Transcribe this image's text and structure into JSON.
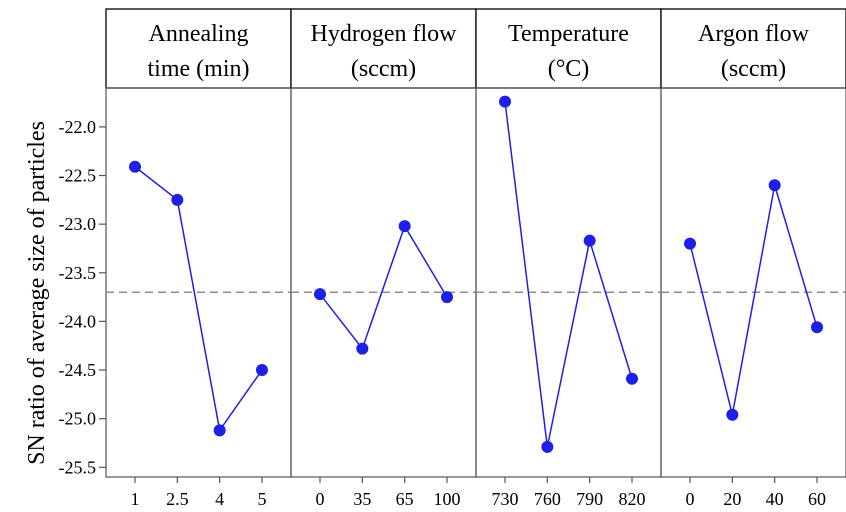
{
  "chart_data": {
    "type": "line",
    "ylabel": "SN ratio of average size of particles",
    "ylim": [
      -25.6,
      -21.6
    ],
    "yticks": [
      "-22.0",
      "-22.5",
      "-23.0",
      "-23.5",
      "-24.0",
      "-24.5",
      "-25.0",
      "-25.5"
    ],
    "reference_line": -23.7,
    "colors": {
      "series": "#1f1fe6",
      "reference": "#8c8c8c",
      "axis": "#555555"
    },
    "panels": [
      {
        "title_lines": [
          "Annealing",
          "time (min)"
        ],
        "categories": [
          "1",
          "2.5",
          "4",
          "5"
        ],
        "values": [
          -22.41,
          -22.75,
          -25.12,
          -24.5
        ]
      },
      {
        "title_lines": [
          "Hydrogen flow",
          "(sccm)"
        ],
        "categories": [
          "0",
          "35",
          "65",
          "100"
        ],
        "values": [
          -23.72,
          -24.28,
          -23.02,
          -23.75
        ]
      },
      {
        "title_lines": [
          "Temperature",
          "(°C)"
        ],
        "categories": [
          "730",
          "760",
          "790",
          "820"
        ],
        "values": [
          -21.74,
          -25.29,
          -23.17,
          -24.59
        ]
      },
      {
        "title_lines": [
          "Argon flow",
          "(sccm)"
        ],
        "categories": [
          "0",
          "20",
          "40",
          "60"
        ],
        "values": [
          -23.2,
          -24.96,
          -22.6,
          -24.06
        ]
      }
    ]
  }
}
